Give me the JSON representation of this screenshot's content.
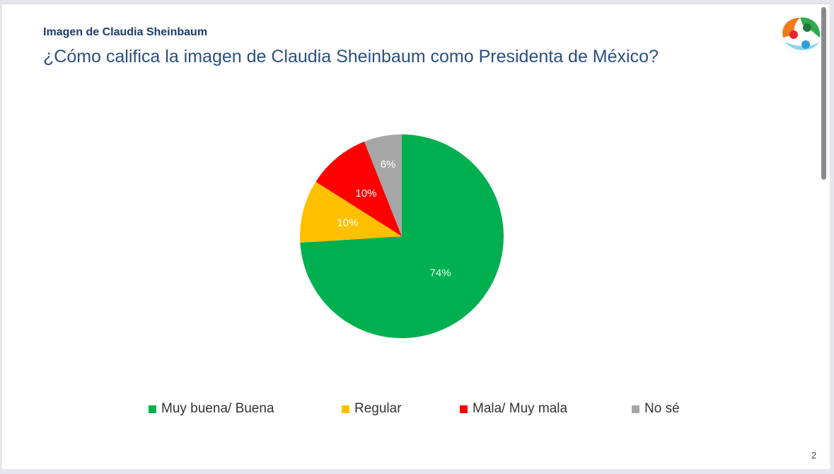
{
  "slide": {
    "subtitle": "Imagen de Claudia Sheinbaum",
    "title": "¿Cómo califica la imagen de Claudia Sheinbaum como Presidenta de México?",
    "page_number": "2"
  },
  "colors": {
    "title": "#2b4f7e",
    "subtitle": "#1d3c6e",
    "logo_orange": "#f07a1c",
    "logo_green": "#2eab4a",
    "logo_blue": "#2aa0dc"
  },
  "chart_data": {
    "type": "pie",
    "title": "¿Cómo califica la imagen de Claudia Sheinbaum como Presidenta de México?",
    "start_angle_deg": 0,
    "direction": "clockwise",
    "slices": [
      {
        "label": "Muy buena/ Buena",
        "value": 74,
        "data_label": "74%",
        "color": "#00b050",
        "label_color": "#e8ffe8"
      },
      {
        "label": "Regular",
        "value": 10,
        "data_label": "10%",
        "color": "#ffc000",
        "label_color": "#ffffff"
      },
      {
        "label": "Mala/ Muy mala",
        "value": 10,
        "data_label": "10%",
        "color": "#ff0000",
        "label_color": "#ffffff"
      },
      {
        "label": "No sé",
        "value": 6,
        "data_label": "6%",
        "color": "#a6a6a6",
        "label_color": "#ffffff"
      }
    ],
    "legend_position": "bottom"
  }
}
